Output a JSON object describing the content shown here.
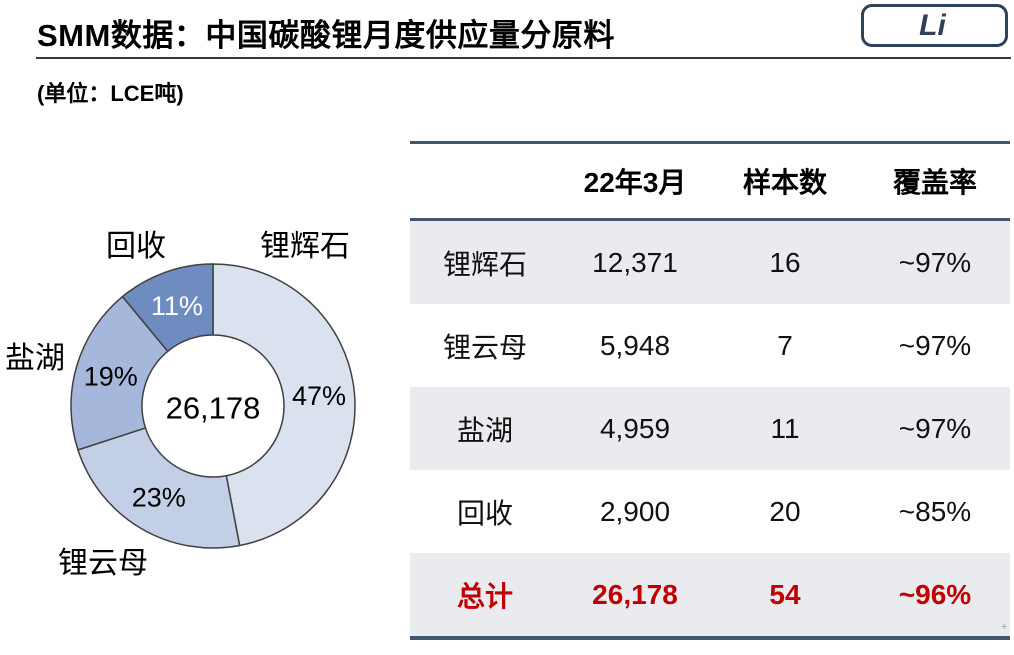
{
  "header": {
    "title": "SMM数据：中国碳酸锂月度供应量分原料",
    "badge": "Li",
    "unit": "(单位：LCE吨)"
  },
  "colors": {
    "accent_dark": "#2e4156",
    "table_rule": "#44556e",
    "row_stripe": "#e9ebef",
    "total_red": "#c00000"
  },
  "chart_data": {
    "type": "pie",
    "donut": true,
    "title": "中国碳酸锂月度供应量分原料",
    "center_total": "26,178",
    "start_angle_deg": 0,
    "direction": "clockwise",
    "outline_color": "#404040",
    "slices": [
      {
        "label": "锂辉石",
        "percent": 47,
        "value": 12371,
        "color": "#dbe2ef",
        "pct_label": "47%",
        "pct_color": "#000000"
      },
      {
        "label": "锂云母",
        "percent": 23,
        "value": 5948,
        "color": "#c3cfe7",
        "pct_label": "23%",
        "pct_color": "#000000"
      },
      {
        "label": "盐湖",
        "percent": 19,
        "value": 4959,
        "color": "#a5b8db",
        "pct_label": "19%",
        "pct_color": "#000000"
      },
      {
        "label": "回收",
        "percent": 11,
        "value": 2900,
        "color": "#6f8cc0",
        "pct_label": "11%",
        "pct_color": "#ffffff"
      }
    ]
  },
  "table": {
    "columns": [
      "22年3月",
      "样本数",
      "覆盖率"
    ],
    "rows": [
      {
        "material": "锂辉石",
        "value": "12,371",
        "samples": "16",
        "coverage": "~97%"
      },
      {
        "material": "锂云母",
        "value": "5,948",
        "samples": "7",
        "coverage": "~97%"
      },
      {
        "material": "盐湖",
        "value": "4,959",
        "samples": "11",
        "coverage": "~97%"
      },
      {
        "material": "回收",
        "value": "2,900",
        "samples": "20",
        "coverage": "~85%"
      }
    ],
    "total_row": {
      "material": "总计",
      "value": "26,178",
      "samples": "54",
      "coverage": "~96%"
    }
  },
  "misc": {
    "footnote_mark": "+"
  }
}
